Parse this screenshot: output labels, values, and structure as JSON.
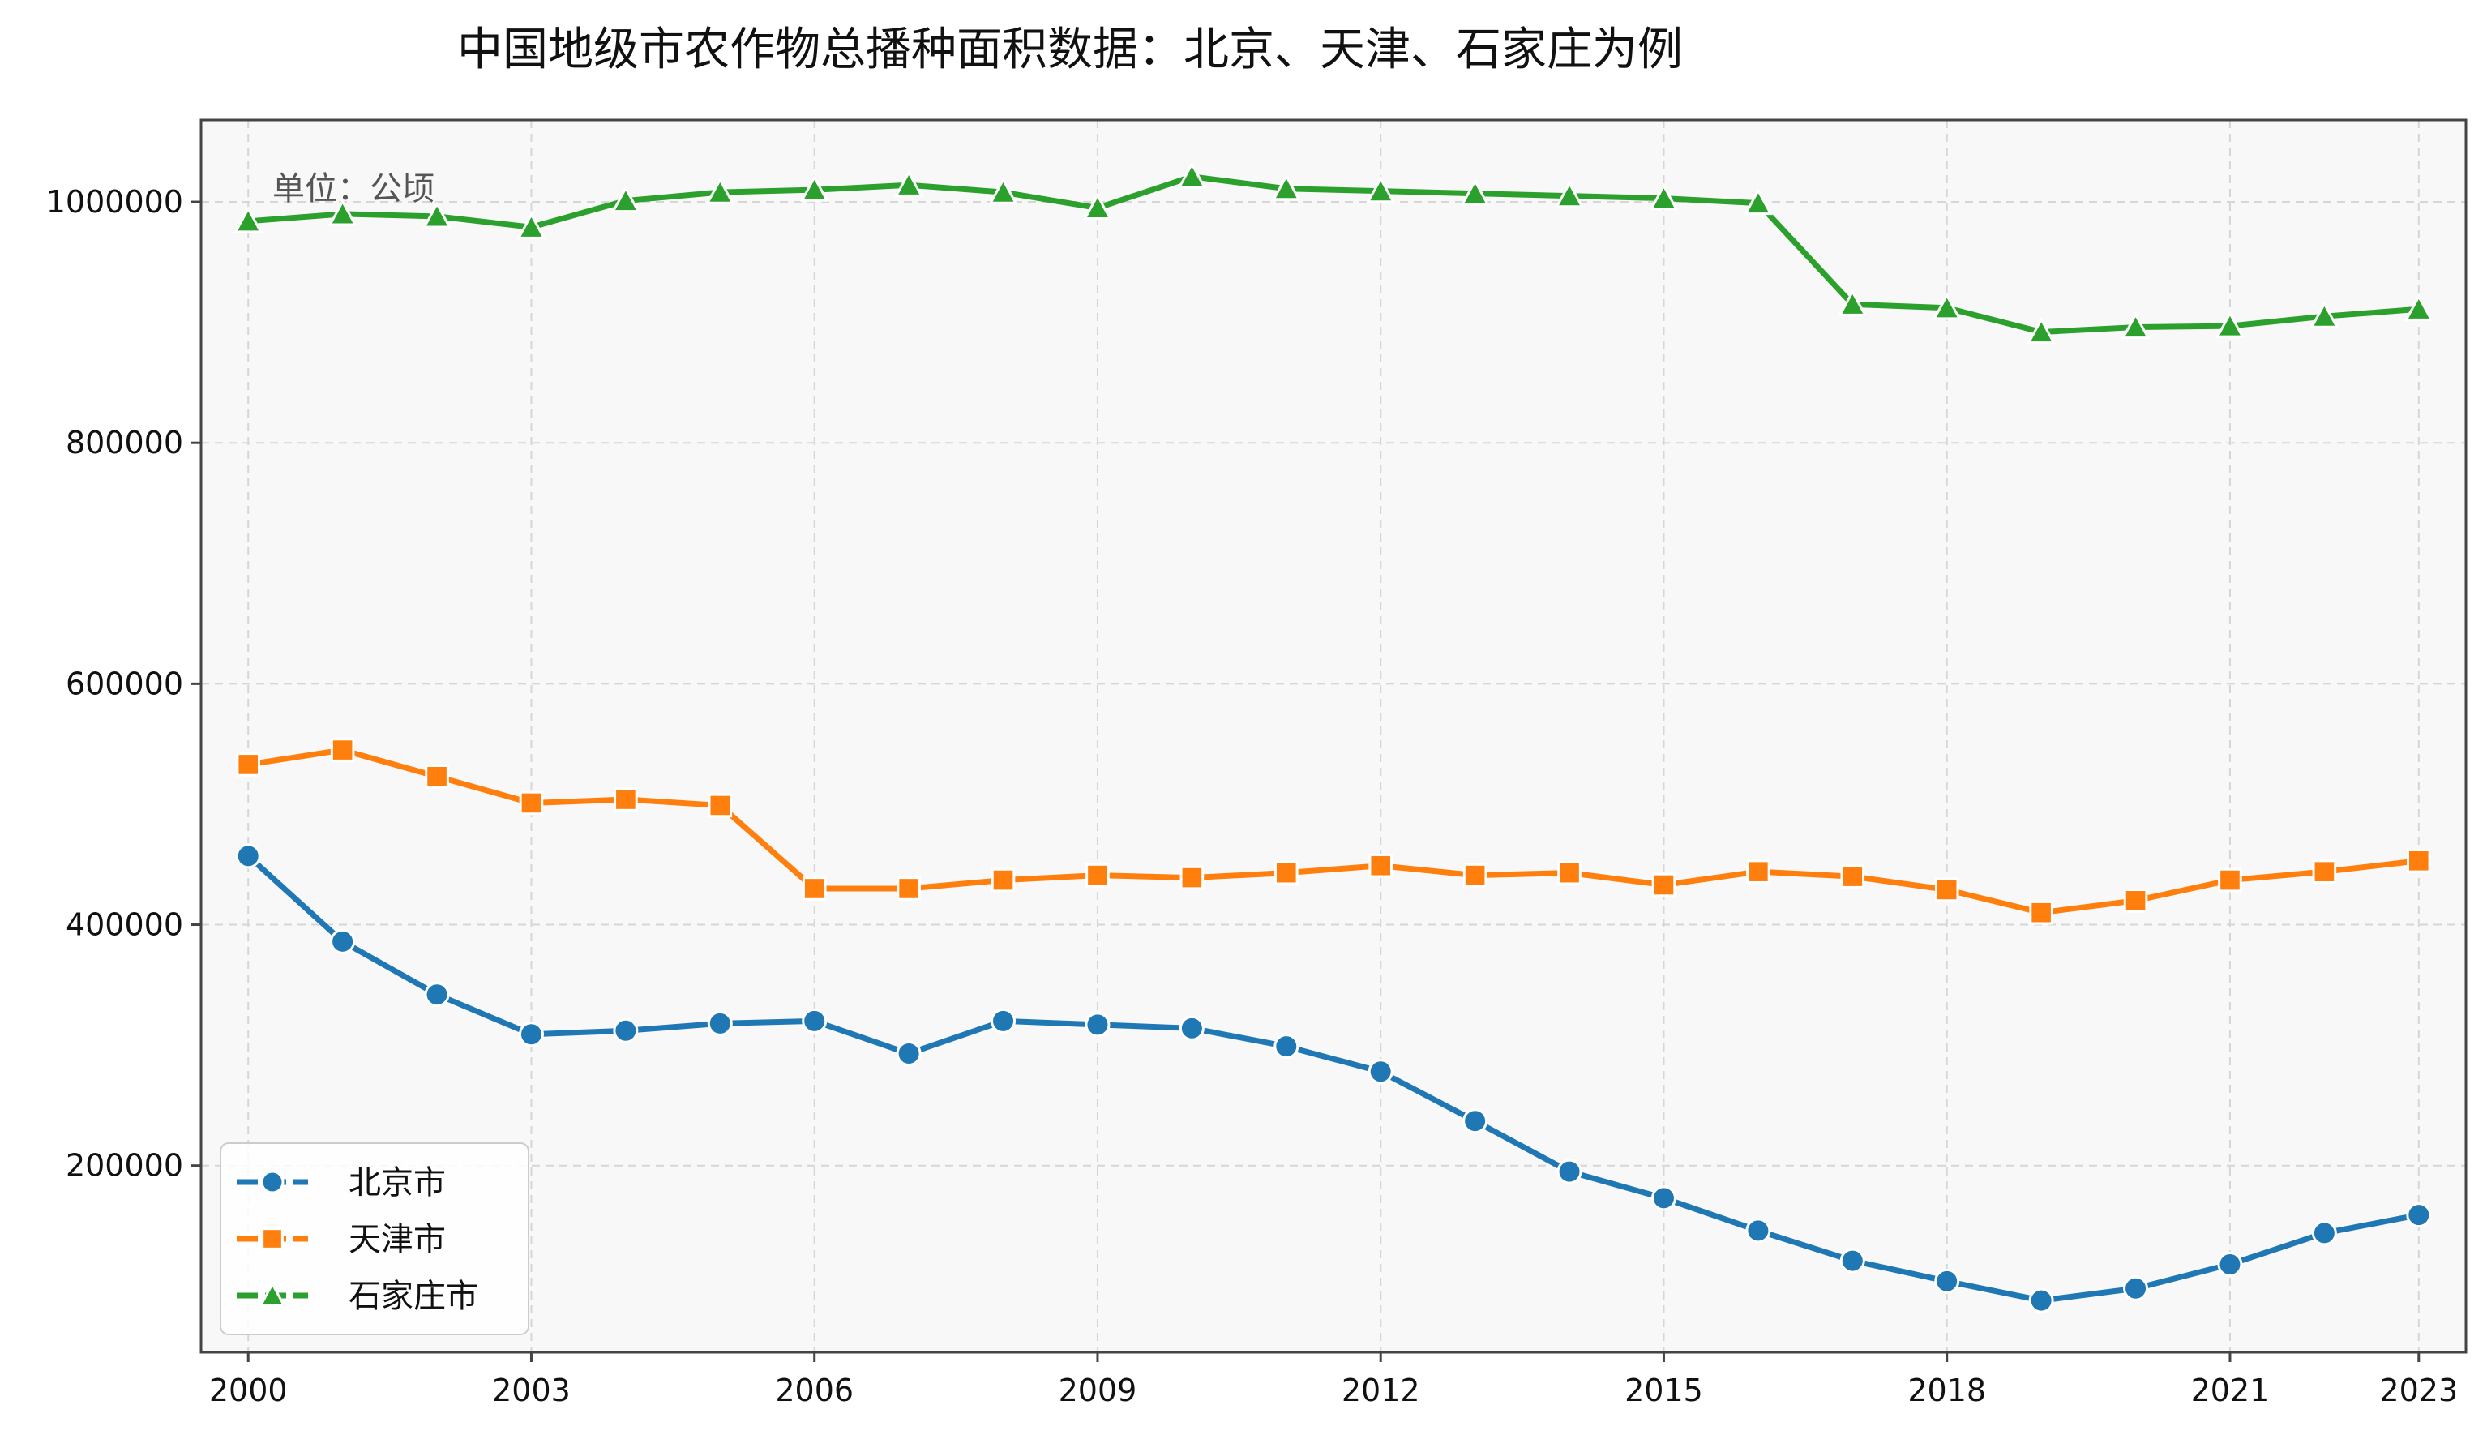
{
  "chart_data": {
    "type": "line",
    "title": "中国地级市农作物总播种面积数据：北京、天津、石家庄为例",
    "annotation": "单位：公顷",
    "xlabel": "",
    "ylabel": "",
    "x": [
      2000,
      2001,
      2002,
      2003,
      2004,
      2005,
      2006,
      2007,
      2008,
      2009,
      2010,
      2011,
      2012,
      2013,
      2014,
      2015,
      2016,
      2017,
      2018,
      2019,
      2020,
      2021,
      2022,
      2023
    ],
    "xticks": [
      "2000",
      "2003",
      "2006",
      "2009",
      "2012",
      "2015",
      "2018",
      "2021",
      "2023"
    ],
    "yticks": [
      "200000",
      "400000",
      "600000",
      "800000",
      "1000000"
    ],
    "xlim": [
      1999.5,
      2023.5
    ],
    "ylim": [
      45000,
      1068000
    ],
    "grid": true,
    "legend_position": "lower-left",
    "background": "#f8f8f8",
    "series": [
      {
        "name": "北京市",
        "color": "#1f77b4",
        "marker": "circle",
        "values": [
          457000,
          386000,
          342000,
          309000,
          312000,
          318000,
          320000,
          293000,
          320000,
          317000,
          314000,
          299000,
          278000,
          237000,
          195000,
          173000,
          146000,
          121000,
          104000,
          88000,
          98000,
          118000,
          144000,
          159000
        ]
      },
      {
        "name": "天津市",
        "color": "#ff7f0e",
        "marker": "square",
        "values": [
          533000,
          545000,
          523000,
          501000,
          504000,
          499000,
          430000,
          430000,
          437000,
          441000,
          439000,
          443000,
          449000,
          441000,
          443000,
          433000,
          444000,
          440000,
          429000,
          410000,
          420000,
          437000,
          444000,
          453000
        ]
      },
      {
        "name": "石家庄市",
        "color": "#2ca02c",
        "marker": "triangle",
        "values": [
          984000,
          990000,
          988000,
          979000,
          1001000,
          1008000,
          1010000,
          1014000,
          1008000,
          995000,
          1021000,
          1011000,
          1009000,
          1007000,
          1005000,
          1003000,
          999000,
          915000,
          912000,
          892000,
          896000,
          897000,
          905000,
          911000
        ]
      }
    ]
  }
}
